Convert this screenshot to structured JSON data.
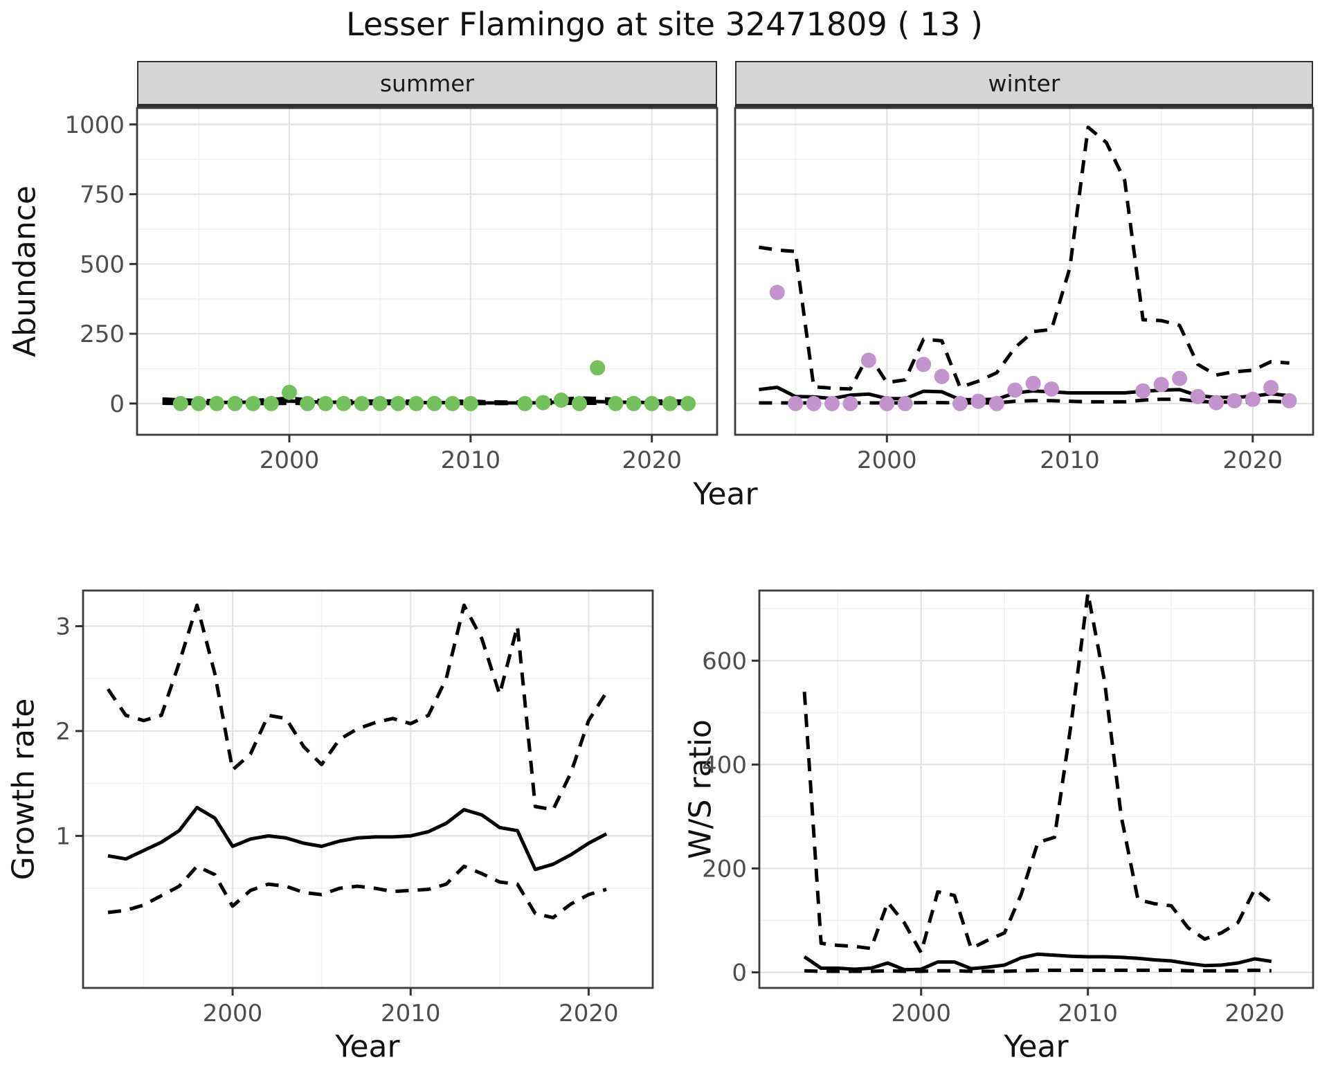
{
  "title": "Lesser Flamingo at site 32471809 ( 13 )",
  "colors": {
    "background": "#ffffff",
    "panel_border": "#3c3c3c",
    "grid_major": "#e2e2e2",
    "grid_minor": "#f0f0f0",
    "strip_fill": "#d5d5d5",
    "strip_border": "#2f2f2f",
    "tick_label": "#4d4d4d",
    "line": "#000000",
    "summer_point": "#74c05c",
    "winter_point": "#c493ce"
  },
  "chart_data": {
    "type": "line",
    "figure_title": "Lesser Flamingo at site 32471809 ( 13 )",
    "description": "Seasonal abundance with model median and dashed credible-interval lines, plus growth rate and winter/summer ratio panels",
    "panels": [
      {
        "id": "summer",
        "type": "line+scatter",
        "title": "summer",
        "xlabel": "Year",
        "ylabel": "Abundance",
        "xlim": [
          1991.6,
          2023.6
        ],
        "ylim": [
          -112,
          1059
        ],
        "xticks": {
          "values": [
            2000,
            2010,
            2020
          ],
          "labels": [
            "2000",
            "2010",
            "2020"
          ],
          "minor": [
            1995,
            2005,
            2015
          ]
        },
        "yticks": {
          "values": [
            0,
            250,
            500,
            750,
            1000
          ],
          "labels": [
            "0",
            "250",
            "500",
            "750",
            "1000"
          ],
          "minor": [
            125,
            375,
            625,
            875
          ]
        },
        "x": [
          1993,
          1994,
          1995,
          1996,
          1997,
          1998,
          1999,
          2000,
          2001,
          2002,
          2003,
          2004,
          2005,
          2006,
          2007,
          2008,
          2009,
          2010,
          2011,
          2012,
          2013,
          2014,
          2015,
          2016,
          2017,
          2018,
          2019,
          2020,
          2021,
          2022
        ],
        "series": [
          {
            "name": "median",
            "style": "solid",
            "values": [
              6,
              5,
              4,
              4,
              4,
              5,
              6,
              9,
              6,
              5,
              4,
              4,
              4,
              4,
              3,
              3,
              3,
              3,
              2,
              2,
              2,
              3,
              6,
              9,
              7,
              5,
              4,
              4,
              4,
              4
            ]
          },
          {
            "name": "upper_ci",
            "style": "dashed",
            "values": [
              16,
              13,
              11,
              10,
              10,
              11,
              14,
              20,
              13,
              10,
              9,
              9,
              9,
              9,
              8,
              8,
              8,
              8,
              6,
              5,
              6,
              9,
              15,
              20,
              18,
              15,
              11,
              9,
              9,
              9
            ]
          },
          {
            "name": "lower_ci",
            "style": "dashed",
            "values": [
              1,
              0,
              0,
              0,
              0,
              0,
              0,
              1,
              0,
              0,
              0,
              0,
              0,
              0,
              0,
              0,
              0,
              0,
              0,
              0,
              0,
              0,
              1,
              1,
              1,
              0,
              0,
              0,
              0,
              0
            ]
          }
        ],
        "points": {
          "name": "observed_counts",
          "color": "#74c05c",
          "x": [
            1994,
            1995,
            1996,
            1997,
            1998,
            1999,
            2000,
            2001,
            2002,
            2003,
            2004,
            2005,
            2006,
            2007,
            2008,
            2009,
            2010,
            2013,
            2014,
            2015,
            2016,
            2017,
            2018,
            2019,
            2020,
            2021,
            2022
          ],
          "y": [
            0,
            0,
            0,
            0,
            0,
            0,
            40,
            0,
            0,
            0,
            0,
            0,
            0,
            0,
            0,
            0,
            0,
            0,
            3,
            12,
            0,
            128,
            0,
            0,
            0,
            0,
            0
          ]
        }
      },
      {
        "id": "winter",
        "type": "line+scatter",
        "title": "winter",
        "xlabel": "Year",
        "ylabel": "Abundance",
        "xlim": [
          1991.7,
          2023.3
        ],
        "ylim": [
          -112,
          1059
        ],
        "xticks": {
          "values": [
            2000,
            2010,
            2020
          ],
          "labels": [
            "2000",
            "2010",
            "2020"
          ],
          "minor": [
            1995,
            2005,
            2015
          ]
        },
        "yticks": {
          "values": [
            0,
            250,
            500,
            750,
            1000
          ],
          "labels": [
            "0",
            "250",
            "500",
            "750",
            "1000"
          ],
          "minor": [
            125,
            375,
            625,
            875
          ]
        },
        "x": [
          1993,
          1994,
          1995,
          1996,
          1997,
          1998,
          1999,
          2000,
          2001,
          2002,
          2003,
          2004,
          2005,
          2006,
          2007,
          2008,
          2009,
          2010,
          2011,
          2012,
          2013,
          2014,
          2015,
          2016,
          2017,
          2018,
          2019,
          2020,
          2021,
          2022
        ],
        "series": [
          {
            "name": "median",
            "style": "solid",
            "values": [
              50,
              58,
              25,
              24,
              18,
              30,
              34,
              18,
              17,
              44,
              42,
              14,
              14,
              15,
              38,
              45,
              42,
              38,
              38,
              38,
              38,
              44,
              48,
              50,
              28,
              22,
              22,
              26,
              35,
              28
            ]
          },
          {
            "name": "upper_ci",
            "style": "dashed",
            "values": [
              560,
              550,
              545,
              60,
              55,
              52,
              175,
              75,
              85,
              230,
              225,
              58,
              80,
              110,
              200,
              258,
              265,
              486,
              990,
              935,
              800,
              300,
              297,
              280,
              140,
              102,
              114,
              119,
              150,
              145
            ]
          },
          {
            "name": "lower_ci",
            "style": "dashed",
            "values": [
              2,
              2,
              2,
              2,
              2,
              2,
              2,
              2,
              2,
              3,
              3,
              2,
              2,
              2,
              8,
              10,
              10,
              8,
              6,
              6,
              6,
              12,
              15,
              15,
              8,
              5,
              5,
              5,
              8,
              5
            ]
          }
        ],
        "points": {
          "name": "observed_counts",
          "color": "#c493ce",
          "x": [
            1994,
            1995,
            1996,
            1997,
            1998,
            1999,
            2000,
            2001,
            2002,
            2003,
            2004,
            2005,
            2006,
            2007,
            2008,
            2009,
            2014,
            2015,
            2016,
            2017,
            2018,
            2019,
            2020,
            2021,
            2022
          ],
          "y": [
            398,
            0,
            0,
            0,
            0,
            155,
            0,
            0,
            140,
            97,
            0,
            8,
            0,
            48,
            72,
            52,
            45,
            68,
            90,
            25,
            3,
            10,
            15,
            57,
            10
          ]
        }
      },
      {
        "id": "growth",
        "type": "line",
        "title": "",
        "xlabel": "Year",
        "ylabel": "Growth rate",
        "xlim": [
          1991.6,
          2023.6
        ],
        "ylim": [
          -0.45,
          3.34
        ],
        "xticks": {
          "values": [
            2000,
            2010,
            2020
          ],
          "labels": [
            "2000",
            "2010",
            "2020"
          ],
          "minor": [
            1995,
            2005,
            2015
          ]
        },
        "yticks": {
          "values": [
            1,
            2,
            3
          ],
          "labels": [
            "1",
            "2",
            "3"
          ],
          "minor": [
            0.5,
            1.5,
            2.5
          ]
        },
        "x": [
          1993,
          1994,
          1995,
          1996,
          1997,
          1998,
          1999,
          2000,
          2001,
          2002,
          2003,
          2004,
          2005,
          2006,
          2007,
          2008,
          2009,
          2010,
          2011,
          2012,
          2013,
          2014,
          2015,
          2016,
          2017,
          2018,
          2019,
          2020,
          2021
        ],
        "series": [
          {
            "name": "median",
            "style": "solid",
            "values": [
              0.81,
              0.78,
              0.86,
              0.94,
              1.05,
              1.27,
              1.17,
              0.9,
              0.97,
              1.0,
              0.98,
              0.93,
              0.9,
              0.95,
              0.98,
              0.99,
              0.99,
              1.0,
              1.04,
              1.12,
              1.25,
              1.2,
              1.08,
              1.05,
              0.68,
              0.73,
              0.82,
              0.93,
              1.02
            ]
          },
          {
            "name": "upper_ci",
            "style": "dashed",
            "values": [
              2.4,
              2.15,
              2.1,
              2.15,
              2.65,
              3.2,
              2.55,
              1.63,
              1.78,
              2.15,
              2.12,
              1.85,
              1.68,
              1.92,
              2.02,
              2.08,
              2.12,
              2.07,
              2.15,
              2.5,
              3.2,
              2.88,
              2.35,
              3.0,
              1.28,
              1.25,
              1.6,
              2.1,
              2.37
            ]
          },
          {
            "name": "lower_ci",
            "style": "dashed",
            "values": [
              0.27,
              0.29,
              0.34,
              0.43,
              0.52,
              0.71,
              0.63,
              0.33,
              0.48,
              0.54,
              0.52,
              0.46,
              0.44,
              0.5,
              0.52,
              0.5,
              0.47,
              0.48,
              0.49,
              0.54,
              0.71,
              0.64,
              0.56,
              0.54,
              0.26,
              0.22,
              0.35,
              0.44,
              0.49
            ]
          }
        ]
      },
      {
        "id": "ws",
        "type": "line",
        "title": "",
        "xlabel": "Year",
        "ylabel": "W/S ratio",
        "xlim": [
          1990.3,
          2023.5
        ],
        "ylim": [
          -30,
          735
        ],
        "xticks": {
          "values": [
            2000,
            2010,
            2020
          ],
          "labels": [
            "2000",
            "2010",
            "2020"
          ],
          "minor": [
            1995,
            2005,
            2015
          ]
        },
        "yticks": {
          "values": [
            0,
            200,
            400,
            600
          ],
          "labels": [
            "0",
            "200",
            "400",
            "600"
          ],
          "minor": [
            100,
            300,
            500,
            700
          ]
        },
        "x": [
          1993,
          1994,
          1995,
          1996,
          1997,
          1998,
          1999,
          2000,
          2001,
          2002,
          2003,
          2004,
          2005,
          2006,
          2007,
          2008,
          2009,
          2010,
          2011,
          2012,
          2013,
          2014,
          2015,
          2016,
          2017,
          2018,
          2019,
          2020,
          2021
        ],
        "series": [
          {
            "name": "median",
            "style": "solid",
            "values": [
              30,
              8,
              8,
              6,
              8,
              18,
              5,
              6,
              20,
              20,
              7,
              10,
              14,
              28,
              35,
              33,
              31,
              30,
              30,
              29,
              27,
              24,
              22,
              17,
              13,
              14,
              18,
              26,
              21
            ]
          },
          {
            "name": "upper_ci",
            "style": "dashed",
            "values": [
              540,
              56,
              52,
              50,
              46,
              135,
              95,
              38,
              155,
              148,
              46,
              62,
              76,
              150,
              250,
              260,
              480,
              730,
              560,
              300,
              140,
              132,
              128,
              86,
              64,
              76,
              96,
              160,
              135
            ]
          },
          {
            "name": "lower_ci",
            "style": "dashed",
            "values": [
              3,
              2,
              2,
              2,
              2,
              3,
              2,
              2,
              3,
              3,
              2,
              2,
              2,
              3,
              4,
              4,
              4,
              4,
              4,
              4,
              4,
              4,
              4,
              3,
              3,
              3,
              3,
              4,
              3
            ]
          }
        ]
      }
    ]
  }
}
